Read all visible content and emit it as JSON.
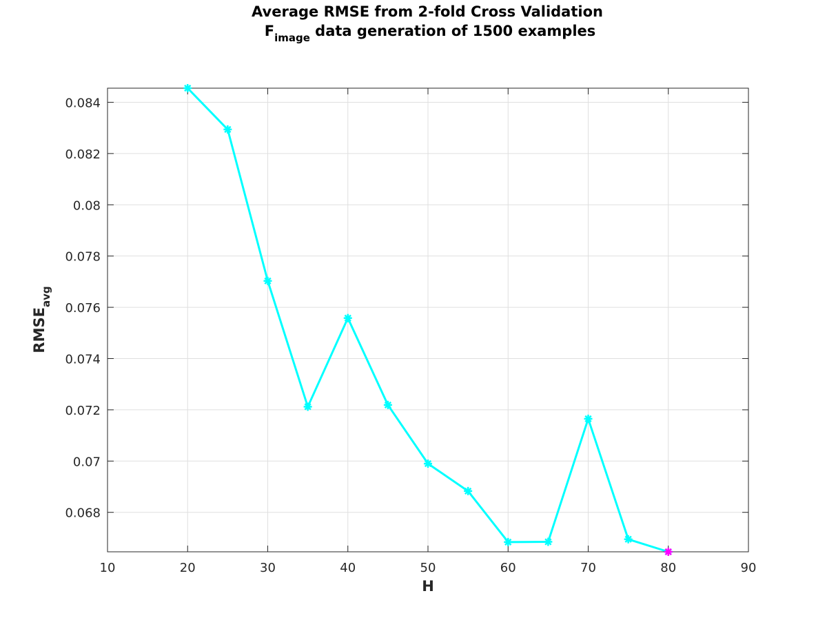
{
  "chart_data": {
    "type": "line",
    "title_line1": "Average RMSE from 2-fold Cross Validation",
    "title_line2_main": "F",
    "title_line2_sub": "image",
    "title_line2_rest": " data generation of 1500 examples",
    "xlabel": "H",
    "ylabel_main": "RMSE",
    "ylabel_sub": "avg",
    "xlim": [
      10,
      90
    ],
    "ylim": [
      0.06646,
      0.08455
    ],
    "xticks": [
      10,
      20,
      30,
      40,
      50,
      60,
      70,
      80,
      90
    ],
    "xtick_labels": [
      "10",
      "20",
      "30",
      "40",
      "50",
      "60",
      "70",
      "80",
      "90"
    ],
    "yticks": [
      0.068,
      0.07,
      0.072,
      0.074,
      0.076,
      0.078,
      0.08,
      0.082,
      0.084
    ],
    "ytick_labels": [
      "0.068",
      "0.07",
      "0.072",
      "0.074",
      "0.076",
      "0.078",
      "0.08",
      "0.082",
      "0.084"
    ],
    "grid": true,
    "series": [
      {
        "x": [
          20,
          25,
          30,
          35,
          40,
          45,
          50,
          55,
          60,
          65,
          70,
          75,
          80
        ],
        "values": [
          0.08455,
          0.08294,
          0.07703,
          0.07212,
          0.07558,
          0.07219,
          0.0699,
          0.06883,
          0.06684,
          0.06685,
          0.07165,
          0.06695,
          0.06646
        ],
        "color": "#00ffff",
        "marker": "asterisk"
      }
    ],
    "highlight": {
      "x": 80,
      "value": 0.06646,
      "color": "#ff00ff",
      "marker": "asterisk"
    }
  }
}
